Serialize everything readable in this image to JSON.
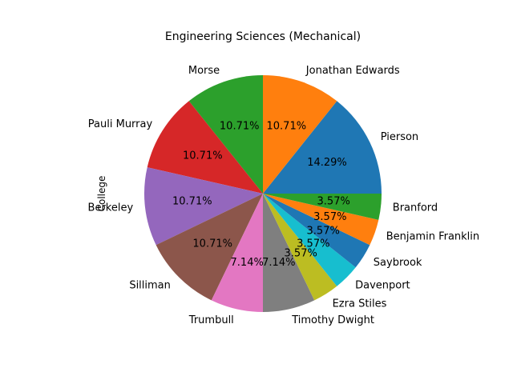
{
  "chart_data": {
    "type": "pie",
    "title": "Engineering Sciences (Mechanical)",
    "ylabel": "College",
    "slices": [
      {
        "label": "Pierson",
        "value": 4,
        "pct": "14.29%",
        "color": "#1f77b4"
      },
      {
        "label": "Jonathan Edwards",
        "value": 3,
        "pct": "10.71%",
        "color": "#ff7f0e"
      },
      {
        "label": "Morse",
        "value": 3,
        "pct": "10.71%",
        "color": "#2ca02c"
      },
      {
        "label": "Pauli Murray",
        "value": 3,
        "pct": "10.71%",
        "color": "#d62728"
      },
      {
        "label": "Berkeley",
        "value": 3,
        "pct": "10.71%",
        "color": "#9467bd"
      },
      {
        "label": "Silliman",
        "value": 3,
        "pct": "10.71%",
        "color": "#8c564b"
      },
      {
        "label": "Trumbull",
        "value": 2,
        "pct": "7.14%",
        "color": "#e377c2"
      },
      {
        "label": "Timothy Dwight",
        "value": 2,
        "pct": "7.14%",
        "color": "#7f7f7f"
      },
      {
        "label": "Ezra Stiles",
        "value": 1,
        "pct": "3.57%",
        "color": "#bcbd22"
      },
      {
        "label": "Davenport",
        "value": 1,
        "pct": "3.57%",
        "color": "#17becf"
      },
      {
        "label": "Saybrook",
        "value": 1,
        "pct": "3.57%",
        "color": "#1f77b4"
      },
      {
        "label": "Benjamin Franklin",
        "value": 1,
        "pct": "3.57%",
        "color": "#ff7f0e"
      },
      {
        "label": "Branford",
        "value": 1,
        "pct": "3.57%",
        "color": "#2ca02c"
      }
    ]
  }
}
